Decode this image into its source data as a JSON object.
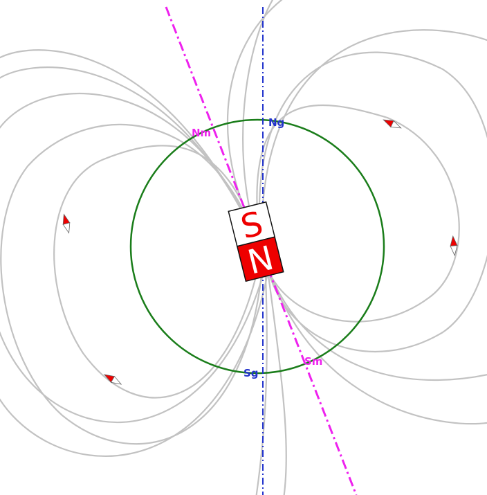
{
  "labels": {
    "magnetic_north": "Nm",
    "magnetic_south": "Sm",
    "geographic_north": "Ng",
    "geographic_south": "Sg"
  },
  "magnet": {
    "south_letter": "S",
    "north_letter": "N"
  },
  "colors": {
    "field_line": "#c2c2c2",
    "earth_circle": "#1a7d1a",
    "magnetic_axis": "#ee22ee",
    "geographic_axis": "#2233cc",
    "magnet_north": "#ee0000",
    "magnet_south": "#ffffff",
    "pole_letter_on_white": "#ee0000",
    "pole_letter_on_red": "#ffffff",
    "compass_red": "#ee0000",
    "compass_white": "#ffffff"
  },
  "compass_icons": [
    "compass-needle-icon",
    "compass-needle-icon",
    "compass-needle-icon",
    "compass-needle-icon"
  ]
}
